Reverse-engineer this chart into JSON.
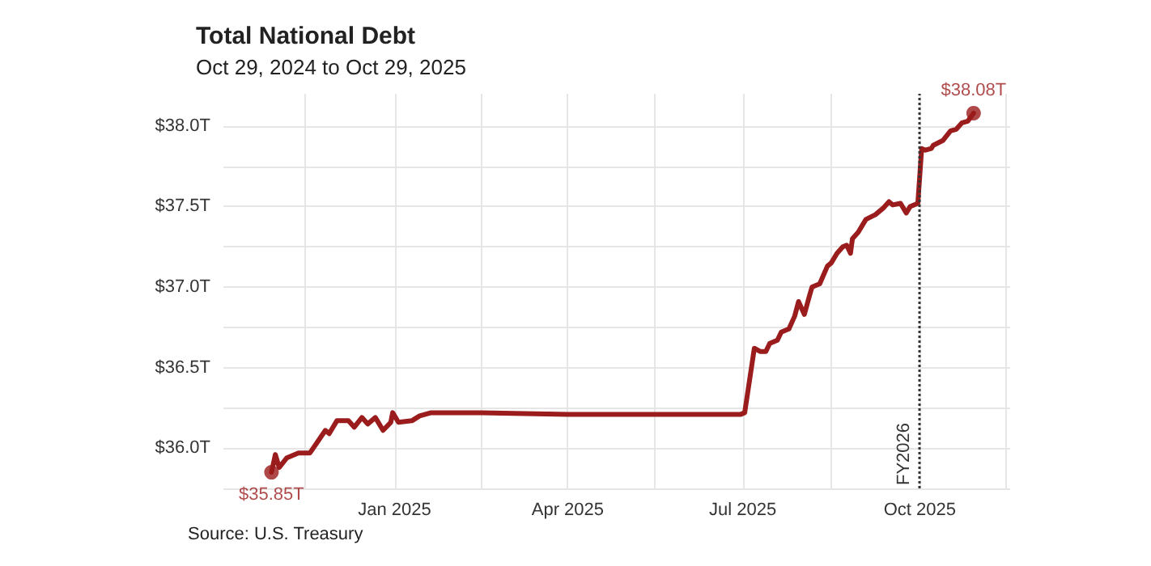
{
  "chart_data": {
    "type": "line",
    "title": "Total National Debt",
    "subtitle": "Oct 29, 2024 to Oct 29, 2025",
    "x": [
      "2024-10-29",
      "2024-10-31",
      "2024-11-02",
      "2024-11-06",
      "2024-11-12",
      "2024-11-18",
      "2024-11-22",
      "2024-11-26",
      "2024-11-28",
      "2024-12-02",
      "2024-12-08",
      "2024-12-11",
      "2024-12-15",
      "2024-12-18",
      "2024-12-22",
      "2024-12-26",
      "2024-12-30",
      "2024-12-31",
      "2025-01-03",
      "2025-01-10",
      "2025-01-14",
      "2025-01-20",
      "2025-02-15",
      "2025-04-01",
      "2025-05-15",
      "2025-06-30",
      "2025-07-02",
      "2025-07-07",
      "2025-07-10",
      "2025-07-13",
      "2025-07-15",
      "2025-07-19",
      "2025-07-21",
      "2025-07-25",
      "2025-07-28",
      "2025-07-30",
      "2025-08-02",
      "2025-08-05",
      "2025-08-06",
      "2025-08-10",
      "2025-08-14",
      "2025-08-16",
      "2025-08-19",
      "2025-08-22",
      "2025-08-24",
      "2025-08-26",
      "2025-08-27",
      "2025-08-30",
      "2025-09-03",
      "2025-09-08",
      "2025-09-10",
      "2025-09-12",
      "2025-09-15",
      "2025-09-17",
      "2025-09-21",
      "2025-09-24",
      "2025-09-26",
      "2025-09-30",
      "2025-10-02",
      "2025-10-04",
      "2025-10-07",
      "2025-10-08",
      "2025-10-13",
      "2025-10-17",
      "2025-10-20",
      "2025-10-23",
      "2025-10-26",
      "2025-10-29"
    ],
    "series": [
      {
        "color": "#9b1c1c",
        "values": [
          35.85,
          35.96,
          35.88,
          35.94,
          35.97,
          35.97,
          36.04,
          36.11,
          36.09,
          36.17,
          36.17,
          36.13,
          36.19,
          36.15,
          36.19,
          36.11,
          36.16,
          36.22,
          36.16,
          36.17,
          36.2,
          36.22,
          36.22,
          36.21,
          36.21,
          36.21,
          36.22,
          36.62,
          36.6,
          36.6,
          36.65,
          36.67,
          36.72,
          36.74,
          36.82,
          36.91,
          36.83,
          36.96,
          37.0,
          37.02,
          37.13,
          37.15,
          37.21,
          37.25,
          37.26,
          37.21,
          37.3,
          37.34,
          37.42,
          37.45,
          37.47,
          37.49,
          37.53,
          37.51,
          37.52,
          37.46,
          37.5,
          37.52,
          37.86,
          37.85,
          37.86,
          37.88,
          37.91,
          37.97,
          37.98,
          38.02,
          38.03,
          38.08
        ]
      }
    ],
    "xlim": [
      "2024-10-04",
      "2025-11-17"
    ],
    "xticks": [
      {
        "value": "2024-11-15",
        "label": null
      },
      {
        "value": "2025-01-01",
        "label": "Jan 2025"
      },
      {
        "value": "2025-02-15",
        "label": null
      },
      {
        "value": "2025-04-01",
        "label": "Apr 2025"
      },
      {
        "value": "2025-05-16",
        "label": null
      },
      {
        "value": "2025-07-01",
        "label": "Jul 2025"
      },
      {
        "value": "2025-08-16",
        "label": null
      },
      {
        "value": "2025-10-01",
        "label": "Oct 2025"
      },
      {
        "value": "2025-11-15",
        "label": null
      }
    ],
    "ylim": [
      35.75,
      38.2
    ],
    "yticks": [
      {
        "value": 35.75,
        "label": null
      },
      {
        "value": 36,
        "label": "$36.0T"
      },
      {
        "value": 36.25,
        "label": null
      },
      {
        "value": 36.5,
        "label": "$36.5T"
      },
      {
        "value": 36.75,
        "label": null
      },
      {
        "value": 37,
        "label": "$37.0T"
      },
      {
        "value": 37.25,
        "label": null
      },
      {
        "value": 37.5,
        "label": "$37.5T"
      },
      {
        "value": 37.75,
        "label": null
      },
      {
        "value": 38,
        "label": "$38.0T"
      }
    ],
    "grid": true,
    "marker": "none",
    "line_style": "solid",
    "ref_lines": [
      {
        "axis": "x",
        "value": "2025-10-01",
        "label": "FY2026",
        "color": "#333333",
        "line_style": "dotted"
      }
    ],
    "annotations": [
      {
        "text": "$35.85T",
        "x": "2024-10-29",
        "y": 35.85
      },
      {
        "text": "$38.08T",
        "x": "2025-10-29",
        "y": 38.08
      },
      "Source: U.S. Treasury"
    ]
  }
}
